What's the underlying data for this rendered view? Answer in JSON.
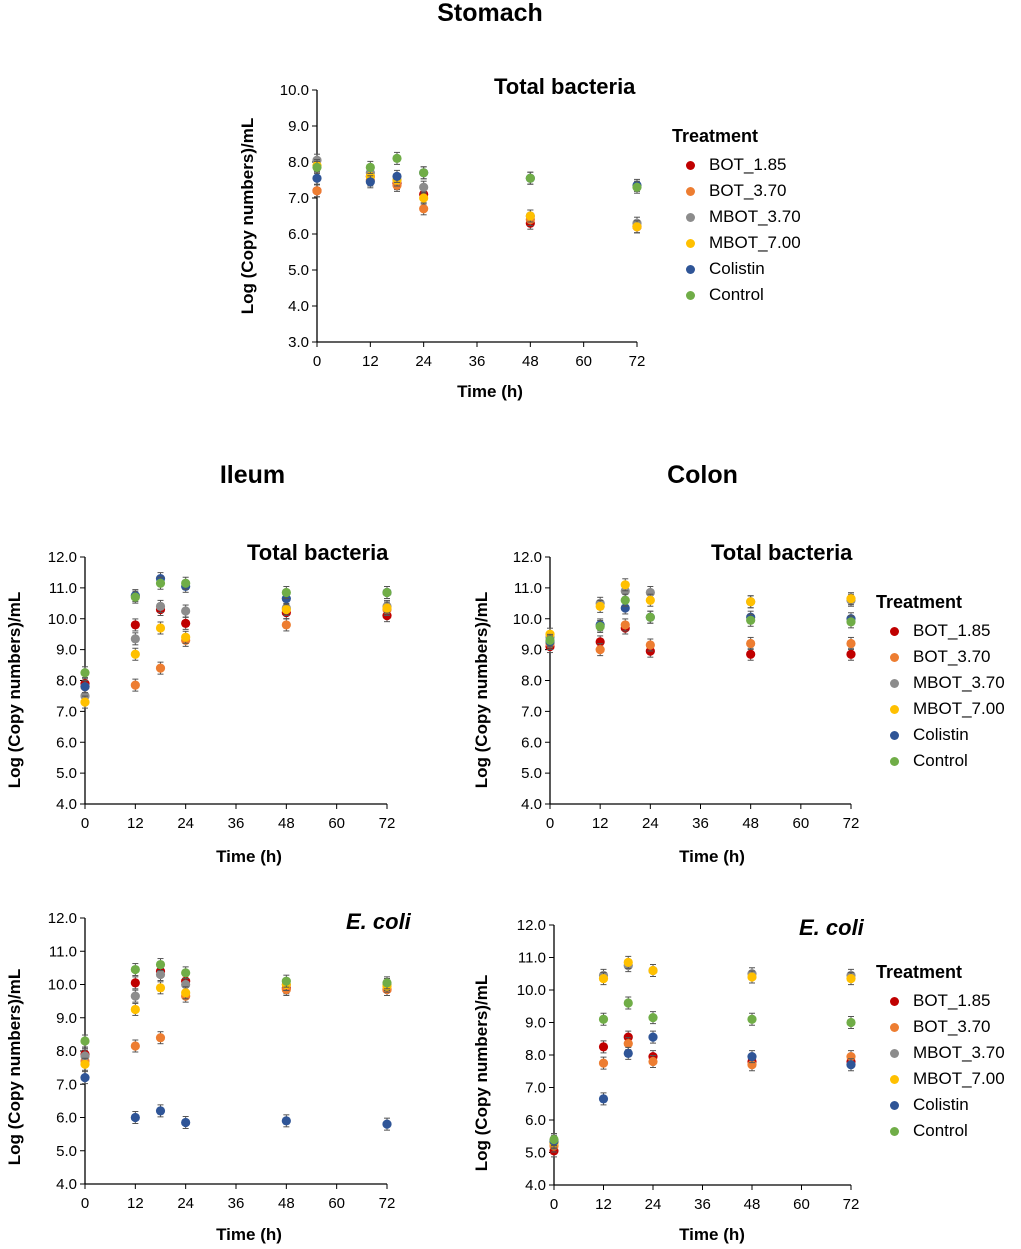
{
  "sections": {
    "stomach": "Stomach",
    "ileum": "Ileum",
    "colon": "Colon"
  },
  "colors": {
    "BOT_1.85": "#c00000",
    "BOT_3.70": "#ed7d31",
    "MBOT_3.70": "#8c8c8c",
    "MBOT_7.00": "#ffc000",
    "Colistin": "#2f5597",
    "Control": "#70ad47"
  },
  "legend": {
    "title": "Treatment",
    "items": [
      "BOT_1.85",
      "BOT_3.70",
      "MBOT_3.70",
      "MBOT_7.00",
      "Colistin",
      "Control"
    ]
  },
  "chart_data": [
    {
      "id": "stomach",
      "type": "scatter",
      "title": "Total bacteria",
      "xlabel": "Time (h)",
      "ylabel": "Log (Copy numbers)/mL",
      "xticks": [
        0,
        12,
        24,
        36,
        48,
        60,
        72
      ],
      "ylim": [
        3.0,
        10.0
      ],
      "yticks": [
        "3.0",
        "4.0",
        "5.0",
        "6.0",
        "7.0",
        "8.0",
        "9.0",
        "10.0"
      ],
      "x": [
        0,
        12,
        18,
        24,
        48,
        72
      ],
      "series": [
        {
          "name": "BOT_1.85",
          "values": [
            7.2,
            7.6,
            7.4,
            7.1,
            6.3,
            6.2
          ]
        },
        {
          "name": "BOT_3.70",
          "values": [
            7.2,
            7.5,
            7.35,
            6.7,
            6.4,
            6.2
          ]
        },
        {
          "name": "MBOT_3.70",
          "values": [
            8.05,
            7.7,
            7.5,
            7.3,
            6.5,
            6.3
          ]
        },
        {
          "name": "MBOT_7.00",
          "values": [
            7.9,
            7.6,
            7.5,
            7.0,
            6.5,
            6.2
          ]
        },
        {
          "name": "Colistin",
          "values": [
            7.55,
            7.45,
            7.6,
            7.7,
            7.55,
            7.35
          ]
        },
        {
          "name": "Control",
          "values": [
            7.85,
            7.85,
            8.1,
            7.7,
            7.55,
            7.3
          ]
        }
      ]
    },
    {
      "id": "ileum-total",
      "type": "scatter",
      "title": "Total bacteria",
      "xlabel": "Time (h)",
      "ylabel": "Log (Copy numbers)/mL",
      "xticks": [
        0,
        12,
        24,
        36,
        48,
        60,
        72
      ],
      "ylim": [
        4.0,
        12.0
      ],
      "yticks": [
        "4.0",
        "5.0",
        "6.0",
        "7.0",
        "8.0",
        "9.0",
        "10.0",
        "11.0",
        "12.0"
      ],
      "x": [
        0,
        12,
        18,
        24,
        48,
        72
      ],
      "series": [
        {
          "name": "BOT_1.85",
          "values": [
            7.9,
            9.8,
            10.3,
            9.85,
            10.2,
            10.1
          ]
        },
        {
          "name": "BOT_3.70",
          "values": [
            7.8,
            7.85,
            8.4,
            9.3,
            9.8,
            10.3
          ]
        },
        {
          "name": "MBOT_3.70",
          "values": [
            7.5,
            9.35,
            10.4,
            10.25,
            10.35,
            10.4
          ]
        },
        {
          "name": "MBOT_7.00",
          "values": [
            7.3,
            8.85,
            9.7,
            9.4,
            10.3,
            10.35
          ]
        },
        {
          "name": "Colistin",
          "values": [
            7.8,
            10.75,
            11.3,
            11.05,
            10.65,
            10.85
          ]
        },
        {
          "name": "Control",
          "values": [
            8.25,
            10.7,
            11.15,
            11.15,
            10.85,
            10.85
          ]
        }
      ]
    },
    {
      "id": "colon-total",
      "type": "scatter",
      "title": "Total bacteria",
      "xlabel": "Time (h)",
      "ylabel": "Log (Copy numbers)/mL",
      "xticks": [
        0,
        12,
        24,
        36,
        48,
        60,
        72
      ],
      "ylim": [
        4.0,
        12.0
      ],
      "yticks": [
        "4.0",
        "5.0",
        "6.0",
        "7.0",
        "8.0",
        "9.0",
        "10.0",
        "11.0",
        "12.0"
      ],
      "x": [
        0,
        12,
        18,
        24,
        48,
        72
      ],
      "series": [
        {
          "name": "BOT_1.85",
          "values": [
            9.1,
            9.25,
            9.7,
            8.95,
            8.85,
            8.85
          ]
        },
        {
          "name": "BOT_3.70",
          "values": [
            9.2,
            9.0,
            9.8,
            9.15,
            9.2,
            9.2
          ]
        },
        {
          "name": "MBOT_3.70",
          "values": [
            9.4,
            10.5,
            10.9,
            10.85,
            10.55,
            10.6
          ]
        },
        {
          "name": "MBOT_7.00",
          "values": [
            9.5,
            10.4,
            11.1,
            10.6,
            10.55,
            10.65
          ]
        },
        {
          "name": "Colistin",
          "values": [
            9.25,
            9.8,
            10.35,
            10.05,
            10.05,
            10.0
          ]
        },
        {
          "name": "Control",
          "values": [
            9.3,
            9.75,
            10.6,
            10.05,
            9.95,
            9.9
          ]
        }
      ]
    },
    {
      "id": "ileum-ecoli",
      "type": "scatter",
      "title": "E. coli",
      "xlabel": "Time (h)",
      "ylabel": "Log (Copy numbers)/mL",
      "xticks": [
        0,
        12,
        24,
        36,
        48,
        60,
        72
      ],
      "ylim": [
        4.0,
        12.0
      ],
      "yticks": [
        "4.0",
        "5.0",
        "6.0",
        "7.0",
        "8.0",
        "9.0",
        "10.0",
        "11.0",
        "12.0"
      ],
      "x": [
        0,
        12,
        18,
        24,
        48,
        72
      ],
      "series": [
        {
          "name": "BOT_1.85",
          "values": [
            7.9,
            10.05,
            10.4,
            10.1,
            9.9,
            9.85
          ]
        },
        {
          "name": "BOT_3.70",
          "values": [
            7.7,
            8.15,
            8.4,
            9.65,
            9.85,
            9.85
          ]
        },
        {
          "name": "MBOT_3.70",
          "values": [
            7.85,
            9.65,
            10.3,
            10.0,
            10.0,
            10.0
          ]
        },
        {
          "name": "MBOT_7.00",
          "values": [
            7.6,
            9.25,
            9.9,
            9.75,
            10.0,
            9.95
          ]
        },
        {
          "name": "Colistin",
          "values": [
            7.2,
            6.0,
            6.2,
            5.85,
            5.9,
            5.8
          ]
        },
        {
          "name": "Control",
          "values": [
            8.3,
            10.45,
            10.6,
            10.35,
            10.1,
            10.05
          ]
        }
      ]
    },
    {
      "id": "colon-ecoli",
      "type": "scatter",
      "title": "E. coli",
      "xlabel": "Time (h)",
      "ylabel": "Log (Copy numbers)/mL",
      "xticks": [
        0,
        12,
        24,
        36,
        48,
        60,
        72
      ],
      "ylim": [
        4.0,
        12.0
      ],
      "yticks": [
        "4.0",
        "5.0",
        "6.0",
        "7.0",
        "8.0",
        "9.0",
        "10.0",
        "11.0",
        "12.0"
      ],
      "x": [
        0,
        12,
        18,
        24,
        48,
        72
      ],
      "series": [
        {
          "name": "BOT_1.85",
          "values": [
            5.05,
            8.25,
            8.55,
            7.95,
            7.8,
            7.8
          ]
        },
        {
          "name": "BOT_3.70",
          "values": [
            5.2,
            7.75,
            8.35,
            7.8,
            7.7,
            7.95
          ]
        },
        {
          "name": "MBOT_3.70",
          "values": [
            5.3,
            10.45,
            10.75,
            10.6,
            10.5,
            10.45
          ]
        },
        {
          "name": "MBOT_7.00",
          "values": [
            5.3,
            10.35,
            10.85,
            10.6,
            10.4,
            10.35
          ]
        },
        {
          "name": "Colistin",
          "values": [
            5.35,
            6.65,
            8.05,
            8.55,
            7.95,
            7.7
          ]
        },
        {
          "name": "Control",
          "values": [
            5.4,
            9.1,
            9.6,
            9.15,
            9.1,
            9.0
          ]
        }
      ]
    }
  ]
}
